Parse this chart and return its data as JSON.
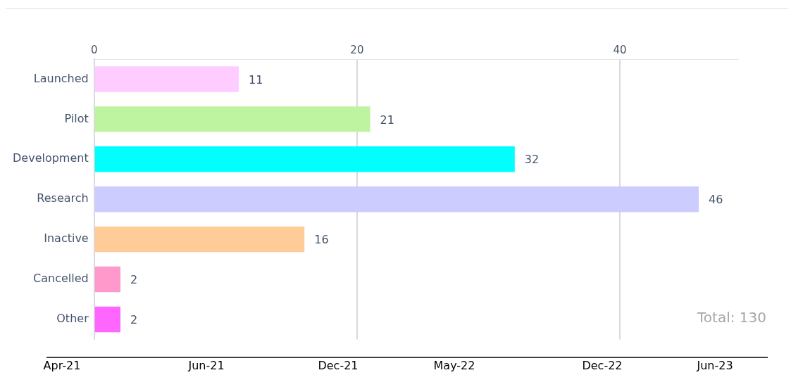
{
  "chart_data": {
    "type": "bar",
    "orientation": "horizontal",
    "categories": [
      "Launched",
      "Pilot",
      "Development",
      "Research",
      "Inactive",
      "Cancelled",
      "Other"
    ],
    "values": [
      11,
      21,
      32,
      46,
      16,
      2,
      2
    ],
    "colors": [
      "#ffccff",
      "#bef4a0",
      "#00ffff",
      "#ccccff",
      "#ffcc99",
      "#ff99cc",
      "#ff66ff"
    ],
    "xlim": [
      0,
      49
    ],
    "xticks": [
      0,
      20,
      40
    ],
    "grid": "x",
    "data_labels": true,
    "legend": false,
    "annotations": [
      "Total: 130",
      "Apr-21",
      "Jun-21",
      "Dec-21",
      "May-22",
      "Dec-22",
      "Jun-23"
    ]
  }
}
